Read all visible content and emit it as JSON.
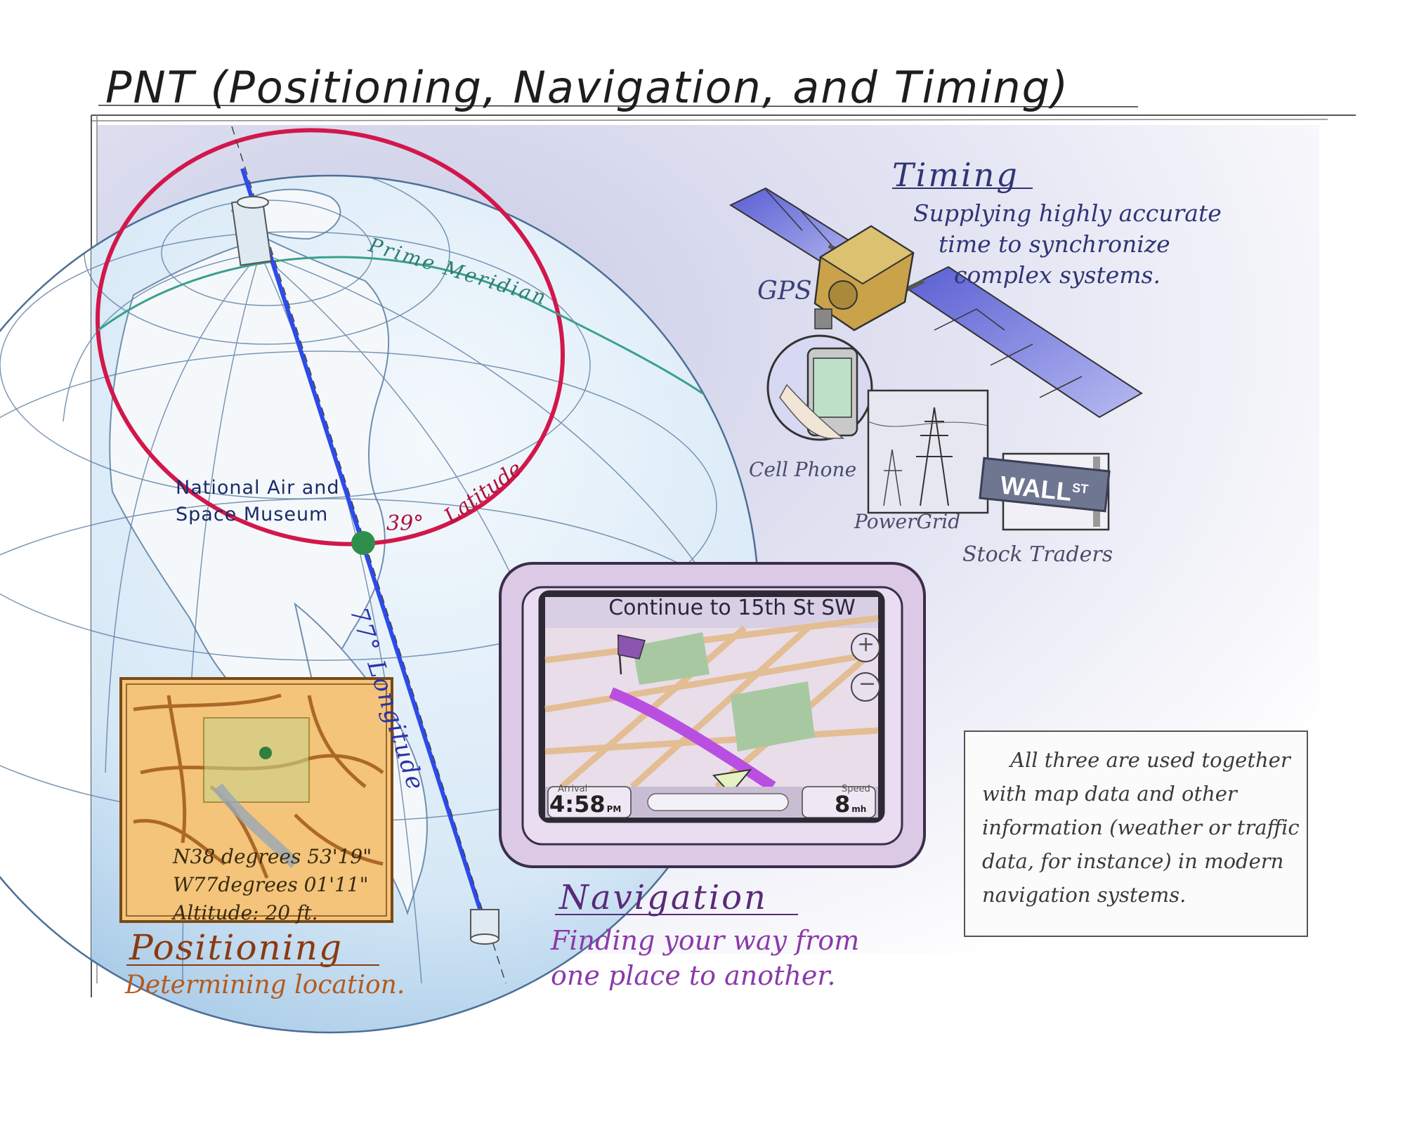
{
  "title": "PNT (Positioning, Navigation, and Timing)",
  "timing": {
    "heading": "Timing",
    "description_lines": [
      "Supplying highly accurate",
      "time to synchronize",
      "complex systems."
    ],
    "gps_label": "GPS",
    "cell_phone_label": "Cell Phone",
    "power_grid_label": "PowerGrid",
    "stock_label": "Stock Traders",
    "sign_text": "WALL",
    "sign_super": "ST"
  },
  "globe": {
    "prime_meridian_label": "Prime Meridian",
    "latitude_label": "Latitude",
    "latitude_degrees": "39°",
    "longitude_label": "77° Longitude",
    "museum_lines": [
      "National Air and",
      "Space Museum"
    ]
  },
  "positioning": {
    "heading": "Positioning",
    "description": "Determining location.",
    "coords": [
      "N38 degrees 53'19\"",
      "W77degrees 01'11\"",
      "Altitude: 20 ft."
    ]
  },
  "navigation": {
    "heading": "Navigation",
    "description_lines": [
      "Finding your way from",
      "one place to another."
    ],
    "instruction": "Continue to 15th St SW",
    "arrival_label": "Arrival",
    "arrival_value": "4:58",
    "arrival_unit": "PM",
    "speed_label": "Speed",
    "speed_value": "8",
    "speed_unit": "mh",
    "zoom_in": "+",
    "zoom_out": "−"
  },
  "note": {
    "lines": [
      "All three are used together",
      "with map data and other",
      "information (weather or traffic",
      "data, for instance) in modern",
      "navigation systems."
    ]
  },
  "colors": {
    "latitude": "#d2174b",
    "longitude": "#2d4bea",
    "prime_meridian": "#3aa08c",
    "globe": "#cfe4f4",
    "positioning": "#f3c47a",
    "navigation": "#b94fe0",
    "timing": "#3a3f8a"
  },
  "icons": [
    "satellite-icon",
    "cell-phone-icon",
    "power-tower-icon",
    "street-sign-icon",
    "location-dot-icon",
    "flag-icon",
    "nav-arrow-icon"
  ]
}
